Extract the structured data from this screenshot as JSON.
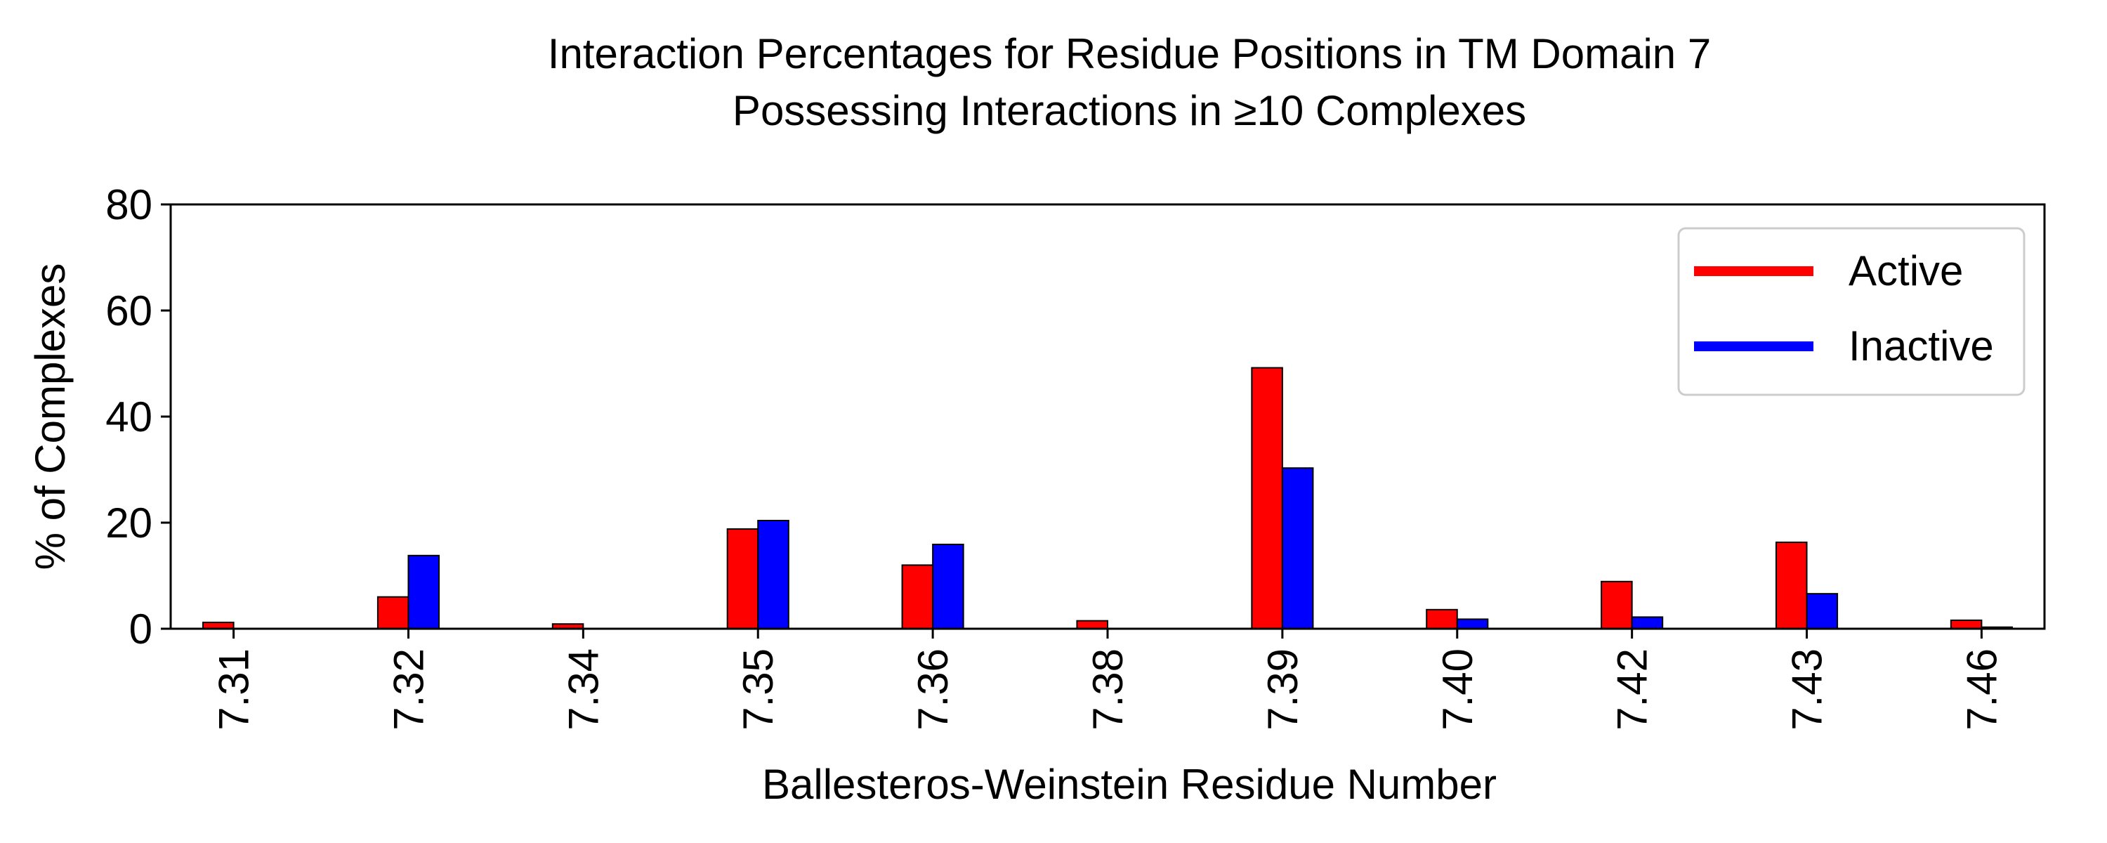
{
  "chart_data": {
    "type": "bar",
    "title_lines": [
      "Interaction Percentages for Residue Positions in TM Domain 7",
      "Possessing Interactions in ≥10 Complexes"
    ],
    "xlabel": "Ballesteros-Weinstein Residue Number",
    "ylabel": "% of Complexes",
    "ylim": [
      0,
      80
    ],
    "yticks": [
      "0",
      "20",
      "40",
      "60",
      "80"
    ],
    "grid": false,
    "legend_position": "top-right",
    "categories": [
      "7.31",
      "7.32",
      "7.34",
      "7.35",
      "7.36",
      "7.38",
      "7.39",
      "7.40",
      "7.42",
      "7.43",
      "7.46"
    ],
    "series": [
      {
        "name": "Active",
        "color": "#ff0000",
        "values": [
          1.2,
          6.0,
          0.9,
          18.8,
          12.0,
          1.5,
          49.2,
          3.6,
          8.9,
          16.3,
          1.6
        ]
      },
      {
        "name": "Inactive",
        "color": "#0000ff",
        "values": [
          0.0,
          13.8,
          0.0,
          20.4,
          15.9,
          0.0,
          30.3,
          1.8,
          2.2,
          6.6,
          0.3
        ]
      }
    ]
  }
}
